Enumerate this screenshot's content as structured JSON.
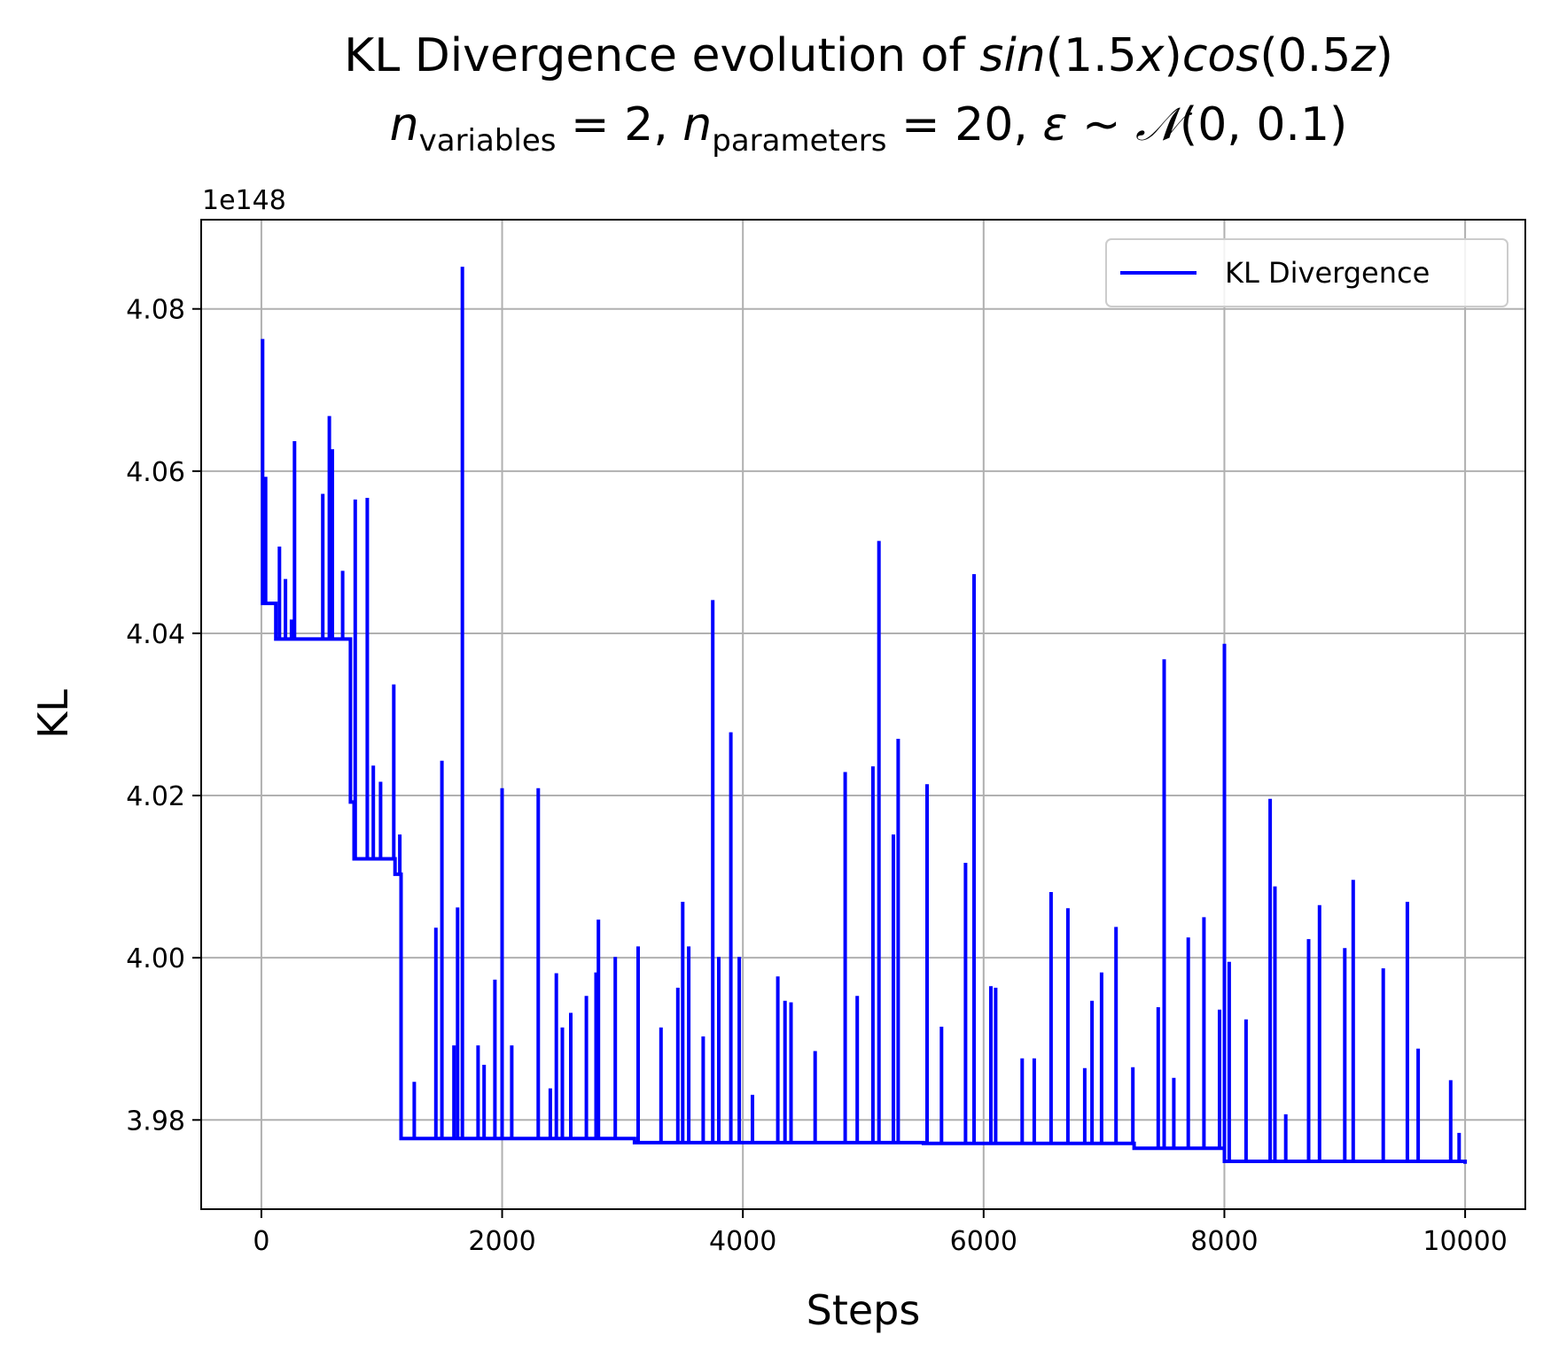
{
  "chart_data": {
    "type": "line",
    "title": {
      "line1_prefix": "KL Divergence evolution of ",
      "line1_math": [
        "sin",
        "(1.5",
        "x",
        ")",
        "cos",
        "(0.5",
        "z",
        ")"
      ],
      "line2": {
        "n1": "n",
        "sub1": "variables",
        "eq1": " = 2, ",
        "n2": "n",
        "sub2": "parameters",
        "eq2": " = 20, ",
        "eps": "ε",
        "dist": " ~ ",
        "N": "𝒩",
        "args": "(0, 0.1)"
      }
    },
    "xlabel": "Steps",
    "ylabel": "KL",
    "y_offset_label": "1e148",
    "xlim": [
      -500,
      10500
    ],
    "ylim": [
      3.969,
      4.091
    ],
    "x_ticks": [
      0,
      2000,
      4000,
      6000,
      8000,
      10000
    ],
    "x_tick_labels": [
      "0",
      "2000",
      "4000",
      "6000",
      "8000",
      "10000"
    ],
    "y_ticks": [
      3.98,
      4.0,
      4.02,
      4.04,
      4.06,
      4.08
    ],
    "y_tick_labels": [
      "3.98",
      "4.00",
      "4.02",
      "4.04",
      "4.06",
      "4.08"
    ],
    "grid": true,
    "legend_position": "top-right",
    "series": [
      {
        "name": "KL Divergence",
        "color": "#0000ff",
        "base_steps": [
          [
            0,
            4.0437
          ],
          [
            120,
            4.0393
          ],
          [
            740,
            4.0192
          ],
          [
            770,
            4.0122
          ],
          [
            1110,
            4.0103
          ],
          [
            1160,
            3.9777
          ],
          [
            3100,
            3.9772
          ],
          [
            5500,
            3.9771
          ],
          [
            7250,
            3.9765
          ],
          [
            8000,
            3.9749
          ],
          [
            10000,
            3.9746
          ]
        ],
        "spikes": [
          [
            10,
            4.0763
          ],
          [
            35,
            4.0593
          ],
          [
            60,
            4.0437
          ],
          [
            150,
            4.0507
          ],
          [
            200,
            4.0467
          ],
          [
            250,
            4.0417
          ],
          [
            275,
            4.0637
          ],
          [
            510,
            4.0572
          ],
          [
            565,
            4.0668
          ],
          [
            590,
            4.0627
          ],
          [
            675,
            4.0477
          ],
          [
            740,
            4.0192
          ],
          [
            780,
            4.0565
          ],
          [
            880,
            4.0567
          ],
          [
            930,
            4.0237
          ],
          [
            990,
            4.0217
          ],
          [
            1100,
            4.0337
          ],
          [
            1150,
            4.0152
          ],
          [
            1270,
            3.9847
          ],
          [
            1450,
            4.0037
          ],
          [
            1500,
            4.0243
          ],
          [
            1600,
            3.9892
          ],
          [
            1630,
            4.0062
          ],
          [
            1670,
            4.0852
          ],
          [
            1800,
            3.9892
          ],
          [
            1850,
            3.9868
          ],
          [
            1940,
            3.9973
          ],
          [
            2000,
            4.0209
          ],
          [
            2080,
            3.9892
          ],
          [
            2300,
            4.0209
          ],
          [
            2400,
            3.9839
          ],
          [
            2450,
            3.9981
          ],
          [
            2500,
            3.9914
          ],
          [
            2570,
            3.9932
          ],
          [
            2700,
            3.9953
          ],
          [
            2780,
            3.9982
          ],
          [
            2800,
            4.0047
          ],
          [
            2940,
            4.0001
          ],
          [
            3130,
            4.0014
          ],
          [
            3320,
            3.9914
          ],
          [
            3460,
            3.9963
          ],
          [
            3500,
            4.0069
          ],
          [
            3550,
            4.0014
          ],
          [
            3670,
            3.9903
          ],
          [
            3750,
            4.0441
          ],
          [
            3800,
            4.0001
          ],
          [
            3900,
            4.0278
          ],
          [
            3970,
            4.0001
          ],
          [
            4080,
            3.9831
          ],
          [
            4290,
            3.9977
          ],
          [
            4350,
            3.9947
          ],
          [
            4400,
            3.9945
          ],
          [
            4600,
            3.9885
          ],
          [
            4850,
            4.0229
          ],
          [
            4950,
            3.9953
          ],
          [
            5080,
            4.0236
          ],
          [
            5130,
            4.0514
          ],
          [
            5250,
            4.0152
          ],
          [
            5290,
            4.027
          ],
          [
            5530,
            4.0214
          ],
          [
            5650,
            3.9915
          ],
          [
            5850,
            4.0117
          ],
          [
            5920,
            4.0473
          ],
          [
            6060,
            3.9965
          ],
          [
            6100,
            3.9963
          ],
          [
            6320,
            3.9876
          ],
          [
            6420,
            3.9876
          ],
          [
            6560,
            4.0081
          ],
          [
            6700,
            4.0061
          ],
          [
            6840,
            3.9864
          ],
          [
            6900,
            3.9947
          ],
          [
            6980,
            3.9982
          ],
          [
            7100,
            4.0038
          ],
          [
            7240,
            3.9865
          ],
          [
            7450,
            3.9939
          ],
          [
            7500,
            4.0368
          ],
          [
            7580,
            3.9852
          ],
          [
            7700,
            4.0025
          ],
          [
            7830,
            4.005
          ],
          [
            7960,
            3.9936
          ],
          [
            8000,
            4.0387
          ],
          [
            8040,
            3.9995
          ],
          [
            8180,
            3.9924
          ],
          [
            8380,
            4.0196
          ],
          [
            8420,
            4.0088
          ],
          [
            8510,
            3.9807
          ],
          [
            8700,
            4.0023
          ],
          [
            8790,
            4.0065
          ],
          [
            9000,
            4.0012
          ],
          [
            9070,
            4.0096
          ],
          [
            9320,
            3.9987
          ],
          [
            9520,
            4.0069
          ],
          [
            9610,
            3.9888
          ],
          [
            9880,
            3.9849
          ],
          [
            9950,
            3.9784
          ]
        ]
      }
    ]
  }
}
